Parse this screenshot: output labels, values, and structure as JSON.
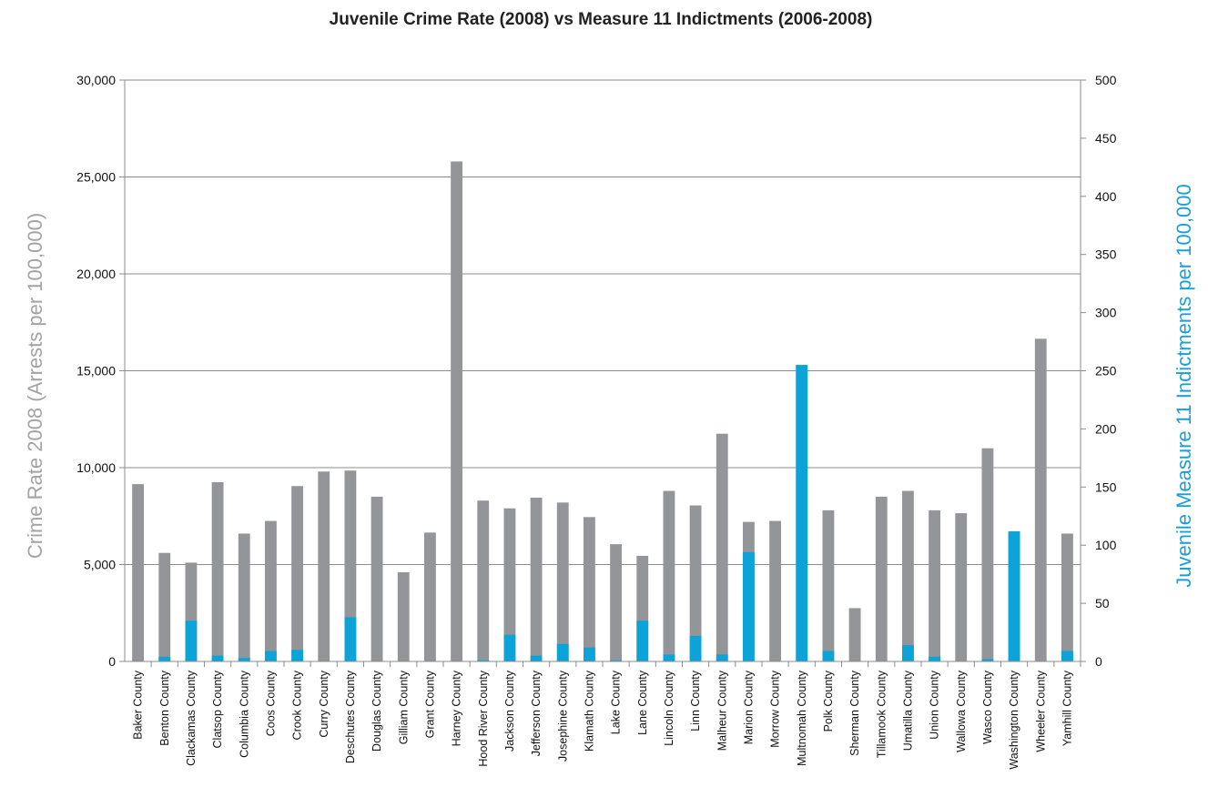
{
  "chart_data": {
    "type": "bar",
    "title": "Juvenile Crime Rate (2008) vs Measure 11 Indictments (2006-2008)",
    "ylabel_left": "Crime Rate 2008 (Arrests per 100,000)",
    "ylabel_right": "Juvenile Measure 11 Indictments per 100,000",
    "ylim_left": [
      0,
      30000
    ],
    "ylim_right": [
      0,
      500
    ],
    "yticks_left": [
      "0",
      "5,000",
      "10,000",
      "15,000",
      "20,000",
      "25,000",
      "30,000"
    ],
    "yticks_right": [
      "0",
      "50",
      "100",
      "150",
      "200",
      "250",
      "300",
      "350",
      "400",
      "450",
      "500"
    ],
    "grid": true,
    "colors": {
      "crime_rate": "#939598",
      "indictments": "#0ca3d9"
    },
    "categories": [
      "Baker County",
      "Benton County",
      "Clackamas County",
      "Clatsop County",
      "Columbia County",
      "Coos County",
      "Crook County",
      "Curry County",
      "Deschutes County",
      "Douglas County",
      "Gilliam County",
      "Grant County",
      "Harney County",
      "Hood River County",
      "Jackson County",
      "Jefferson County",
      "Josephine County",
      "Klamath County",
      "Lake County",
      "Lane County",
      "Lincoln County",
      "Linn County",
      "Malheur County",
      "Marion County",
      "Morrow County",
      "Multnomah County",
      "Polk County",
      "Sherman County",
      "Tillamook County",
      "Umatilla County",
      "Union County",
      "Wallowa County",
      "Wasco County",
      "Washington County",
      "Wheeler County",
      "Yamhill County"
    ],
    "series": [
      {
        "axis": "left",
        "values": [
          9150,
          5600,
          5100,
          9250,
          6600,
          7250,
          9050,
          9800,
          9850,
          8500,
          4600,
          6650,
          25800,
          8300,
          7900,
          8450,
          8200,
          7450,
          6050,
          5450,
          8800,
          8050,
          11750,
          7200,
          7250,
          15300,
          7800,
          2750,
          8500,
          8800,
          7800,
          7650,
          11000,
          6650,
          16650,
          6600
        ]
      },
      {
        "axis": "right",
        "values": [
          0,
          4,
          35,
          5,
          3,
          9,
          10,
          0,
          38,
          0,
          0,
          0,
          0,
          1,
          23,
          5,
          15,
          12,
          1,
          35,
          6,
          22,
          6,
          94,
          0,
          255,
          9,
          0,
          0,
          14,
          4,
          0,
          2,
          112,
          0,
          9
        ]
      }
    ]
  }
}
